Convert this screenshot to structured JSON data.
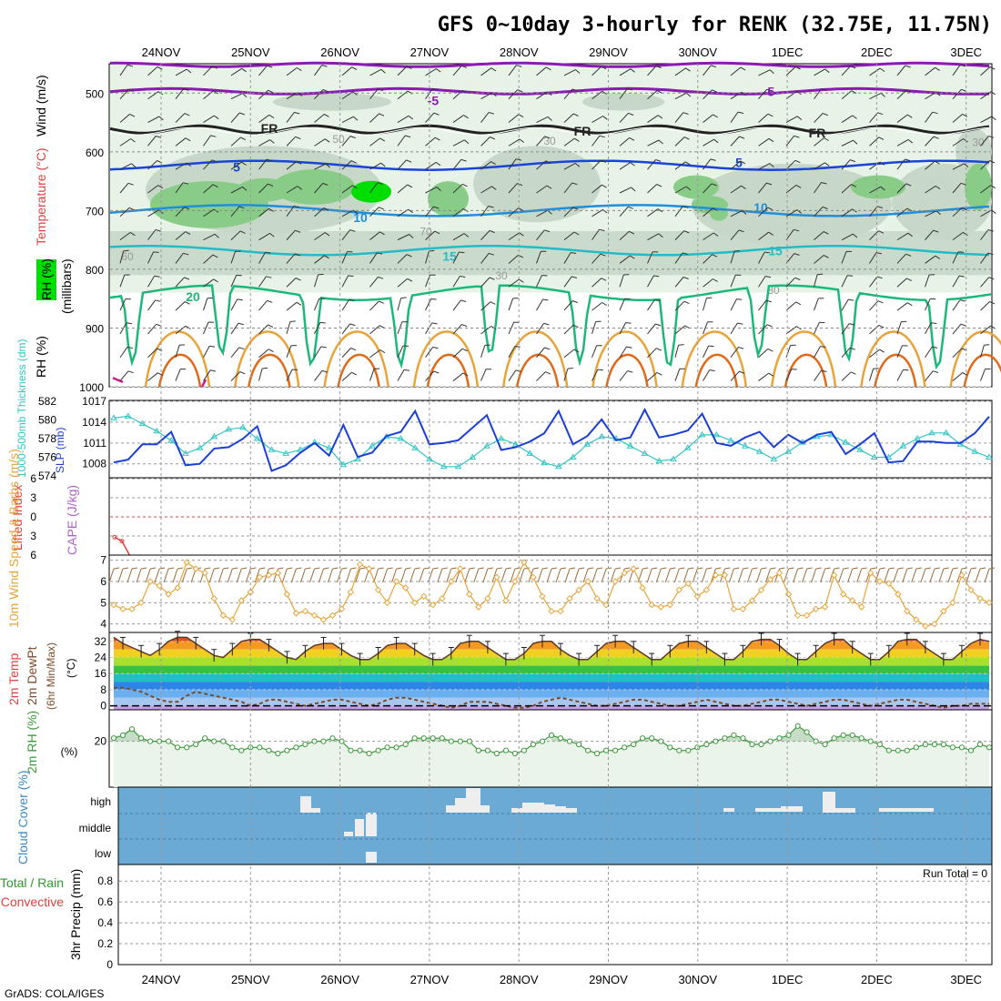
{
  "page": {
    "title": "GFS 0~10day 3-hourly for RENK (32.75E, 11.75N)",
    "footer": "GrADS: COLA/IGES"
  },
  "dates": [
    "24NOV",
    "25NOV",
    "26NOV",
    "27NOV",
    "28NOV",
    "29NOV",
    "30NOV",
    "1DEC",
    "2DEC",
    "3DEC"
  ],
  "colors": {
    "rh_light": "#e8f3e8",
    "rh_mid": "#c8d8c8",
    "rh_dark": "#88cc88",
    "rh_bright": "#00dd00",
    "slp": "#1a3fd6",
    "thick": "#33c5c5",
    "wind": "#e8a43a",
    "rh2m": "#3c9a3c",
    "cloud": "#6aaad4",
    "cloud_cell": "#eeeeee",
    "lifted": "#e04040"
  },
  "chart_data": [
    {
      "type": "heatmap",
      "name": "upper",
      "ylabel_parts": [
        "Wind (m/s)",
        "Temperature (°C)",
        "(millibars)",
        "RH (%)"
      ],
      "yticks": [
        500,
        600,
        700,
        800,
        900,
        1000
      ],
      "ylim": [
        450,
        1000
      ],
      "rh_legend": "RH (%)",
      "rh_contour_labels": [
        "50",
        "30",
        "30",
        "60",
        "70",
        "30",
        "30"
      ],
      "isotherms": [
        {
          "label": "-5",
          "level": 495
        },
        {
          "label": "-5",
          "level": 505
        },
        {
          "label": "FR",
          "level": 560
        },
        {
          "label": "FR",
          "level": 565
        },
        {
          "label": "FR",
          "level": 568
        },
        {
          "label": "5",
          "level": 626
        },
        {
          "label": "5",
          "level": 618
        },
        {
          "label": "10",
          "level": 710
        },
        {
          "label": "10",
          "level": 695
        },
        {
          "label": "15",
          "level": 775
        },
        {
          "label": "15",
          "level": 765
        },
        {
          "label": "20",
          "level": 845
        }
      ]
    },
    {
      "type": "line",
      "name": "slp_thickness",
      "ylabel": "SLP (mb)",
      "ylabel2": "1000-500mb Thickness (dm)",
      "yticks_slp": [
        1008,
        1011,
        1014,
        1017
      ],
      "yticks_thick": [
        574,
        576,
        578,
        580,
        582
      ],
      "ylim_slp": [
        1006,
        1017
      ],
      "ylim_thick": [
        574,
        582
      ],
      "series": [
        {
          "values": [
            1008.2,
            1008.6,
            1010.8,
            1010.8,
            1012.6,
            1007.8,
            1008.0,
            1010.2,
            1010.4,
            1011.6,
            1013.4,
            1007.0,
            1007.8,
            1009.6,
            1011.0,
            1009.2,
            1013.6,
            1009.0,
            1009.6,
            1012.0,
            1012.6,
            1015.6,
            1010.8,
            1011.0,
            1011.4,
            1013.2,
            1015.0,
            1010.0,
            1010.4,
            1011.2,
            1012.4,
            1015.6,
            1010.8,
            1012.0,
            1014.4,
            1011.4,
            1011.8,
            1015.8,
            1011.8,
            1012.2,
            1012.8,
            1015.2,
            1011.0,
            1010.6,
            1011.8,
            1012.6,
            1010.4,
            1012.2,
            1011.0,
            1012.2,
            1012.6,
            1009.4,
            1010.8,
            1012.4,
            1008.2,
            1008.4,
            1011.2,
            1011.2,
            1011.0,
            1011.0,
            1012.4,
            1014.8
          ]
        },
        {
          "values": [
            580.2,
            580.4,
            579.6,
            578.8,
            577.8,
            576.4,
            577.0,
            578.2,
            579.0,
            579.2,
            578.0,
            576.8,
            576.4,
            576.8,
            577.6,
            577.0,
            575.2,
            575.8,
            577.2,
            578.2,
            578.0,
            577.0,
            575.8,
            575.0,
            575.0,
            576.0,
            577.2,
            578.0,
            577.4,
            576.4,
            575.4,
            575.0,
            576.0,
            577.4,
            578.2,
            578.0,
            577.2,
            576.4,
            575.6,
            575.8,
            577.0,
            578.4,
            578.4,
            577.8,
            577.2,
            576.6,
            575.8,
            576.6,
            577.6,
            578.2,
            578.4,
            577.6,
            576.8,
            576.0,
            576.0,
            577.2,
            578.0,
            578.6,
            578.6,
            577.4,
            576.6,
            576.0
          ]
        }
      ]
    },
    {
      "type": "line",
      "name": "cape_li",
      "ylabel": "Lifted Index",
      "ylabel2": "CAPE (J/kg)",
      "yticks": [
        6,
        3,
        0,
        -3,
        -6
      ],
      "ylim": [
        -6,
        6
      ],
      "series": [
        {
          "name": "Lifted Index",
          "values": [
            3.2,
            3.8,
            5.9,
            7.0
          ]
        }
      ]
    },
    {
      "type": "line",
      "name": "wind10m",
      "ylabel": "10m Wind Speed & Barbs (m/s)",
      "yticks": [
        4,
        5,
        6,
        7
      ],
      "ylim": [
        3.6,
        7.2
      ],
      "series": [
        {
          "values": [
            4.9,
            4.7,
            4.7,
            5.0,
            6.0,
            5.8,
            5.4,
            5.7,
            6.9,
            6.6,
            6.4,
            5.2,
            4.4,
            4.2,
            5.1,
            5.5,
            6.2,
            6.3,
            6.4,
            5.4,
            4.5,
            4.6,
            4.4,
            4.2,
            4.4,
            4.7,
            5.5,
            6.8,
            6.6,
            5.6,
            5.0,
            6.0,
            5.7,
            5.0,
            5.3,
            4.9,
            5.2,
            6.0,
            6.6,
            5.4,
            4.8,
            5.2,
            6.2,
            5.1,
            6.0,
            6.9,
            6.2,
            5.3,
            4.6,
            4.6,
            5.2,
            5.6,
            6.0,
            5.2,
            4.9,
            6.0,
            6.4,
            6.6,
            5.7,
            4.9,
            4.8,
            4.9,
            5.6,
            5.9,
            5.3,
            5.6,
            6.3,
            6.3,
            4.7,
            4.7,
            5.1,
            5.6,
            6.1,
            6.4,
            5.4,
            4.4,
            4.4,
            4.7,
            4.8,
            6.3,
            5.4,
            5.1,
            4.8,
            6.4,
            6.0,
            5.9,
            5.4,
            4.6,
            4.2,
            3.9,
            4.0,
            4.6,
            5.0,
            6.3,
            5.6,
            5.2,
            5.0
          ]
        }
      ]
    },
    {
      "type": "area",
      "name": "temp2m",
      "ylabel_parts": [
        "2m Temp",
        "2m DewPt",
        "(6hr Min/Max)",
        "(°C)"
      ],
      "yticks": [
        0,
        8,
        16,
        24,
        32
      ],
      "ylim": [
        -2,
        36
      ],
      "series": [
        {
          "name": "2m Temp",
          "values": [
            34,
            31,
            29,
            27,
            25,
            28,
            32,
            34,
            34,
            31,
            28,
            25,
            24,
            28,
            32,
            33,
            33,
            30,
            27,
            24,
            23,
            27,
            30,
            31,
            31,
            28,
            25,
            23,
            23,
            26,
            30,
            31,
            31,
            28,
            25,
            23,
            23,
            26,
            31,
            32,
            32,
            29,
            26,
            23,
            23,
            26,
            31,
            32,
            32,
            28,
            25,
            23,
            23,
            27,
            31,
            32,
            32,
            29,
            26,
            23,
            23,
            27,
            31,
            32,
            32,
            29,
            26,
            23,
            23,
            27,
            32,
            33,
            33,
            30,
            26,
            23,
            23,
            27,
            31,
            33,
            33,
            29,
            26,
            23,
            23,
            27,
            32,
            33,
            33,
            29,
            26,
            23,
            23,
            27,
            31,
            33,
            32
          ]
        },
        {
          "name": "2m DewPt",
          "values": [
            9,
            9,
            8,
            7,
            5,
            3,
            2,
            2,
            5,
            7,
            6,
            5,
            4,
            3,
            2,
            0,
            1,
            3,
            3,
            2,
            1,
            0,
            1,
            2,
            3,
            3,
            2,
            1,
            0,
            1,
            3,
            4,
            4,
            3,
            2,
            1,
            0,
            -1,
            0,
            2,
            2,
            2,
            1,
            0,
            -1,
            -1,
            0,
            2,
            3,
            4,
            3,
            2,
            1,
            0,
            0,
            1,
            2,
            3,
            3,
            2,
            1,
            0,
            0,
            1,
            2,
            3,
            2,
            1,
            0,
            0,
            1,
            2,
            3,
            3,
            2,
            1,
            0,
            1,
            2,
            3,
            3,
            2,
            1,
            0,
            1,
            2,
            3,
            3,
            2,
            1,
            0,
            -1,
            0,
            0,
            1,
            1,
            1
          ]
        }
      ]
    },
    {
      "type": "line",
      "name": "rh2m",
      "ylabel": "2m RH (%)",
      "yticks": [
        20
      ],
      "ylim": [
        5,
        30
      ],
      "series": [
        {
          "values": [
            21,
            22,
            24,
            21,
            20,
            20,
            20,
            18,
            18,
            19,
            21,
            20,
            20,
            18,
            17,
            18,
            18,
            17,
            16,
            17,
            18,
            19,
            20,
            20,
            21,
            20,
            17,
            17,
            16,
            17,
            18,
            18,
            19,
            21,
            21,
            21,
            21,
            20,
            20,
            20,
            17,
            17,
            16,
            17,
            16,
            17,
            19,
            20,
            22,
            21,
            20,
            19,
            17,
            16,
            17,
            17,
            18,
            19,
            21,
            21,
            20,
            18,
            17,
            17,
            18,
            19,
            20,
            21,
            22,
            21,
            19,
            19,
            20,
            21,
            22,
            25,
            23,
            20,
            19,
            21,
            22,
            22,
            21,
            20,
            19,
            17,
            17,
            17,
            18,
            19,
            19,
            19,
            18,
            18,
            17,
            19,
            18
          ]
        }
      ]
    },
    {
      "type": "heatmap",
      "name": "cloud",
      "ylabel": "Cloud Cover (%)",
      "rows": [
        "high",
        "middle",
        "low"
      ]
    },
    {
      "type": "bar",
      "name": "precip",
      "ylabel": "3hr Precip (mm)",
      "ylabel_side": [
        "Total / Rain",
        "Convective"
      ],
      "yticks": [
        0,
        0.2,
        0.4,
        0.6,
        0.8
      ],
      "ylim": [
        0,
        0.95
      ],
      "run_total": "Run Total = 0",
      "values": []
    }
  ]
}
